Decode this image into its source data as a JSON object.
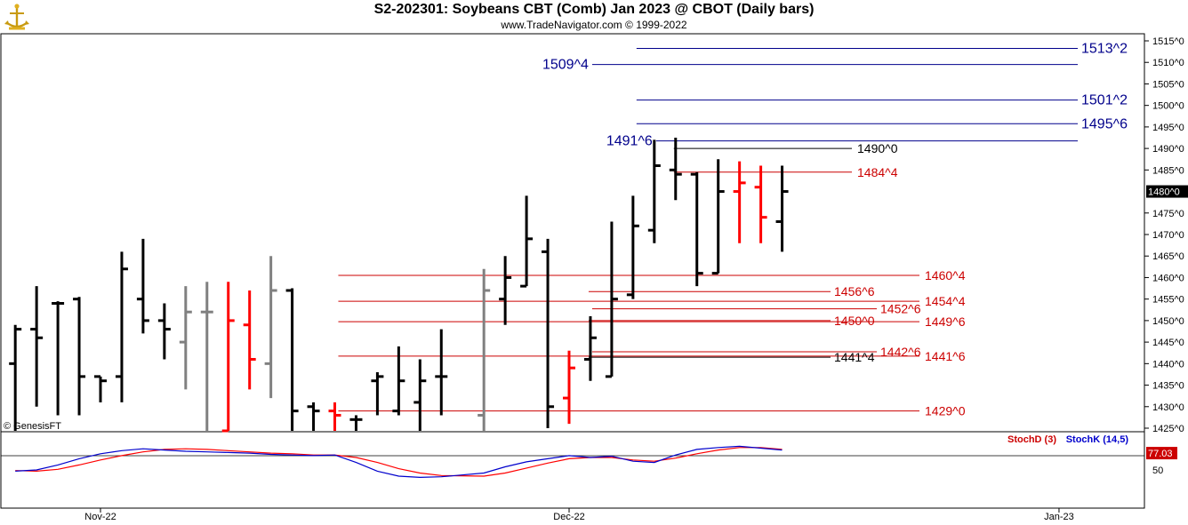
{
  "header": {
    "title": "S2-202301:  Soybeans CBT (Comb) Jan 2023 @ CBOT  (Daily bars)",
    "subtitle": "www.TradeNavigator.com © 1999-2022",
    "logo_icon": "trade-navigator-logo-icon",
    "copyright": "© GenesisFT"
  },
  "colors": {
    "bar_black": "#000000",
    "bar_red": "#ff0000",
    "bar_gray": "#808080",
    "bar_green": "#00cc00",
    "level_blue": "#00008b",
    "level_red": "#cc0000",
    "stoch_d": "#ff0000",
    "stoch_k": "#0000cc"
  },
  "chart_data": [
    {
      "type": "ohlc",
      "ylim": [
        1424,
        1517
      ],
      "x_axis": {
        "labels": [
          {
            "text": "Nov-22",
            "date": "2022-11-01"
          },
          {
            "text": "Dec-22",
            "date": "2022-12-01"
          },
          {
            "text": "Jan-23",
            "date": "2023-01-03"
          }
        ]
      },
      "y_axis": {
        "ticks": [
          {
            "v": 1515,
            "label": "1515^0"
          },
          {
            "v": 1510,
            "label": "1510^0"
          },
          {
            "v": 1505,
            "label": "1505^0"
          },
          {
            "v": 1500,
            "label": "1500^0"
          },
          {
            "v": 1495,
            "label": "1495^0"
          },
          {
            "v": 1490,
            "label": "1490^0"
          },
          {
            "v": 1485,
            "label": "1485^0"
          },
          {
            "v": 1475,
            "label": "1475^0"
          },
          {
            "v": 1470,
            "label": "1470^0"
          },
          {
            "v": 1465,
            "label": "1465^0"
          },
          {
            "v": 1460,
            "label": "1460^0"
          },
          {
            "v": 1455,
            "label": "1455^0"
          },
          {
            "v": 1450,
            "label": "1450^0"
          },
          {
            "v": 1445,
            "label": "1445^0"
          },
          {
            "v": 1440,
            "label": "1440^0"
          },
          {
            "v": 1435,
            "label": "1435^0"
          },
          {
            "v": 1430,
            "label": "1430^0"
          },
          {
            "v": 1425,
            "label": "1425^0"
          }
        ],
        "last_price": {
          "v": 1480,
          "label": "1480^0"
        }
      },
      "bars": [
        {
          "date": "2022-10-26",
          "o": 1440,
          "h": 1449,
          "l": 1424,
          "c": 1448,
          "color": "black"
        },
        {
          "date": "2022-10-27",
          "o": 1448,
          "h": 1458,
          "l": 1430,
          "c": 1446,
          "color": "black"
        },
        {
          "date": "2022-10-28",
          "o": 1454,
          "h": 1454.5,
          "l": 1428,
          "c": 1454,
          "color": "black"
        },
        {
          "date": "2022-10-31",
          "o": 1455,
          "h": 1455.5,
          "l": 1428,
          "c": 1437,
          "color": "black"
        },
        {
          "date": "2022-11-01",
          "o": 1437,
          "h": 1437,
          "l": 1431,
          "c": 1436,
          "color": "black"
        },
        {
          "date": "2022-11-02",
          "o": 1437,
          "h": 1466,
          "l": 1431,
          "c": 1462,
          "color": "black"
        },
        {
          "date": "2022-11-03",
          "o": 1455,
          "h": 1469,
          "l": 1447,
          "c": 1450,
          "color": "black"
        },
        {
          "date": "2022-11-04",
          "o": 1450,
          "h": 1454,
          "l": 1441,
          "c": 1448,
          "color": "black"
        },
        {
          "date": "2022-11-07",
          "o": 1445,
          "h": 1458,
          "l": 1434,
          "c": 1452,
          "color": "gray"
        },
        {
          "date": "2022-11-08",
          "o": 1452,
          "h": 1459,
          "l": 1424,
          "c": 1452,
          "color": "gray"
        },
        {
          "date": "2022-11-09",
          "o": 1424,
          "h": 1459,
          "l": 1424,
          "c": 1450,
          "color": "red"
        },
        {
          "date": "2022-11-10",
          "o": 1449,
          "h": 1457,
          "l": 1434,
          "c": 1441,
          "color": "red"
        },
        {
          "date": "2022-11-11",
          "o": 1440,
          "h": 1465,
          "l": 1432,
          "c": 1457,
          "color": "gray"
        },
        {
          "date": "2022-11-14",
          "o": 1457,
          "h": 1457.5,
          "l": 1424,
          "c": 1429,
          "color": "black"
        },
        {
          "date": "2022-11-15",
          "o": 1430,
          "h": 1431,
          "l": 1424,
          "c": 1429,
          "color": "black"
        },
        {
          "date": "2022-11-16",
          "o": 1429,
          "h": 1431,
          "l": 1424,
          "c": 1428,
          "color": "red"
        },
        {
          "date": "2022-11-17",
          "o": 1427,
          "h": 1428,
          "l": 1424,
          "c": 1427,
          "color": "black"
        },
        {
          "date": "2022-11-18",
          "o": 1436,
          "h": 1438,
          "l": 1428,
          "c": 1437,
          "color": "black"
        },
        {
          "date": "2022-11-21",
          "o": 1429,
          "h": 1444,
          "l": 1428,
          "c": 1436,
          "color": "black"
        },
        {
          "date": "2022-11-22",
          "o": 1431,
          "h": 1441,
          "l": 1424,
          "c": 1436,
          "color": "black"
        },
        {
          "date": "2022-11-23",
          "o": 1437,
          "h": 1448,
          "l": 1428,
          "c": 1437,
          "color": "black"
        },
        {
          "date": "2022-11-25",
          "o": 1428,
          "h": 1462,
          "l": 1424,
          "c": 1457,
          "color": "gray"
        },
        {
          "date": "2022-11-28",
          "o": 1455,
          "h": 1465,
          "l": 1449,
          "c": 1460,
          "color": "black"
        },
        {
          "date": "2022-11-29",
          "o": 1458,
          "h": 1479,
          "l": 1458,
          "c": 1469,
          "color": "black"
        },
        {
          "date": "2022-11-30",
          "o": 1466,
          "h": 1469,
          "l": 1425,
          "c": 1430,
          "color": "black"
        },
        {
          "date": "2022-12-01",
          "o": 1432,
          "h": 1443,
          "l": 1426,
          "c": 1439,
          "color": "red"
        },
        {
          "date": "2022-12-02",
          "o": 1441,
          "h": 1451,
          "l": 1436,
          "c": 1446,
          "color": "black"
        },
        {
          "date": "2022-12-05",
          "o": 1437,
          "h": 1473,
          "l": 1437,
          "c": 1455,
          "color": "black"
        },
        {
          "date": "2022-12-06",
          "o": 1456,
          "h": 1479,
          "l": 1455,
          "c": 1472,
          "color": "black"
        },
        {
          "date": "2022-12-07",
          "o": 1471,
          "h": 1492,
          "l": 1468,
          "c": 1486,
          "color": "black"
        },
        {
          "date": "2022-12-08",
          "o": 1485,
          "h": 1492.5,
          "l": 1478,
          "c": 1484,
          "color": "black"
        },
        {
          "date": "2022-12-09",
          "o": 1484,
          "h": 1484.5,
          "l": 1458,
          "c": 1461,
          "color": "black"
        },
        {
          "date": "2022-12-12",
          "o": 1461,
          "h": 1487.5,
          "l": 1461,
          "c": 1480,
          "color": "black"
        },
        {
          "date": "2022-12-13",
          "o": 1480,
          "h": 1487,
          "l": 1468,
          "c": 1482,
          "color": "red"
        },
        {
          "date": "2022-12-14",
          "o": 1481,
          "h": 1486,
          "l": 1468,
          "c": 1474,
          "color": "red"
        },
        {
          "date": "2022-12-15",
          "o": 1473,
          "h": 1486,
          "l": 1466,
          "c": 1480,
          "color": "black"
        }
      ],
      "levels": [
        {
          "v": 1513.25,
          "label": "1513^2",
          "color": "blue",
          "x_from": "2022-12-07",
          "label_side": "right"
        },
        {
          "v": 1509.5,
          "label": "1509^4",
          "color": "blue",
          "x_from": "2022-12-02",
          "label_side": "left"
        },
        {
          "v": 1501.25,
          "label": "1501^2",
          "color": "blue",
          "x_from": "2022-12-07",
          "label_side": "right"
        },
        {
          "v": 1495.75,
          "label": "1495^6",
          "color": "blue",
          "x_from": "2022-12-07",
          "label_side": "right"
        },
        {
          "v": 1491.75,
          "label": "1491^6",
          "color": "blue",
          "x_from": "2022-12-07",
          "label_side": "left"
        },
        {
          "v": 1490,
          "label": "1490^0",
          "color": "black",
          "x_from": "2022-12-08",
          "label_side": "mid"
        },
        {
          "v": 1484.5,
          "label": "1484^4",
          "color": "red",
          "x_from": "2022-12-08",
          "label_side": "mid"
        },
        {
          "v": 1460.5,
          "label": "1460^4",
          "color": "red",
          "x_from": "2022-11-17",
          "label_side": "right2"
        },
        {
          "v": 1456.75,
          "label": "1456^6",
          "color": "red",
          "x_from": "2022-12-02",
          "label_side": "mid2"
        },
        {
          "v": 1454.5,
          "label": "1454^4",
          "color": "red",
          "x_from": "2022-11-17",
          "label_side": "right2"
        },
        {
          "v": 1452.75,
          "label": "1452^6",
          "color": "red",
          "x_from": "2022-12-02",
          "label_side": "mid3"
        },
        {
          "v": 1449.75,
          "label": "1449^6",
          "color": "red",
          "x_from": "2022-11-17",
          "label_side": "right2"
        },
        {
          "v": 1450,
          "label": "1450^0",
          "color": "red",
          "x_from": "2022-12-02",
          "label_side": "mid2"
        },
        {
          "v": 1442.75,
          "label": "1442^6",
          "color": "red",
          "x_from": "2022-12-02",
          "label_side": "mid3"
        },
        {
          "v": 1441.75,
          "label": "1441^6",
          "color": "red",
          "x_from": "2022-11-17",
          "label_side": "right2"
        },
        {
          "v": 1441.5,
          "label": "1441^4",
          "color": "black",
          "x_from": "2022-12-02",
          "label_side": "mid2"
        },
        {
          "v": 1429,
          "label": "1429^0",
          "color": "red",
          "x_from": "2022-11-17",
          "label_side": "right2"
        }
      ]
    },
    {
      "type": "line",
      "ylim": [
        0,
        100
      ],
      "y_ticks": [
        {
          "v": 50,
          "label": "50"
        }
      ],
      "last_value": {
        "v": 77.03,
        "label": "77.03"
      },
      "series": [
        {
          "name": "StochD (3)",
          "color": "red",
          "values": [
            49,
            48,
            51,
            58,
            66,
            73,
            79,
            83,
            84,
            83,
            81,
            79,
            77,
            76,
            74,
            74,
            70,
            62,
            52,
            45,
            41,
            40,
            45,
            53,
            61,
            68,
            70,
            70,
            66,
            64,
            69,
            76,
            82,
            86,
            86,
            83
          ]
        },
        {
          "name": "StochK (14,5)",
          "color": "blue",
          "values": [
            48,
            50,
            58,
            68,
            76,
            81,
            84,
            82,
            80,
            79,
            78,
            77,
            75,
            74,
            73,
            74,
            62,
            48,
            40,
            38,
            39,
            45,
            55,
            63,
            68,
            73,
            70,
            72,
            64,
            62,
            74,
            83,
            86,
            88,
            85,
            82
          ]
        }
      ]
    }
  ]
}
